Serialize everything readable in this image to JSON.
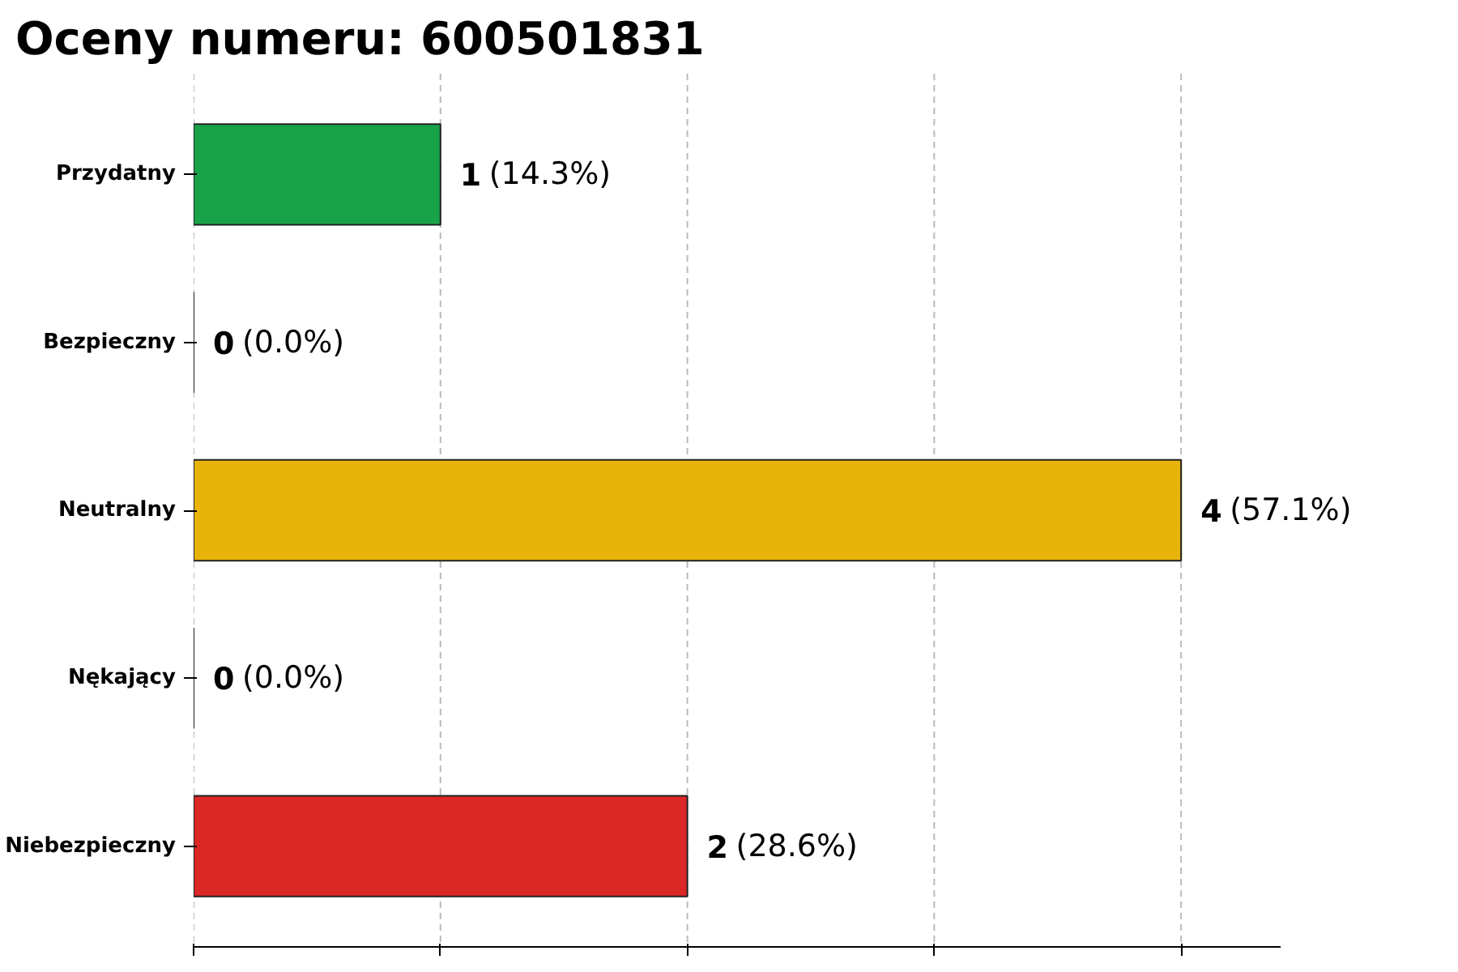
{
  "chart_data": {
    "type": "bar",
    "orientation": "horizontal",
    "title": "Oceny numeru: 600501831",
    "categories": [
      "Przydatny",
      "Bezpieczny",
      "Neutralny",
      "Nękający",
      "Niebezpieczny"
    ],
    "values": [
      1,
      0,
      4,
      0,
      2
    ],
    "colors": [
      "#18a349",
      "#222222",
      "#e8b40c",
      "#222222",
      "#dc2727"
    ],
    "value_labels": [
      "1 (14.3%)",
      "0 (0.0%)",
      "4 (57.1%)",
      "0 (0.0%)",
      "2 (28.6%)"
    ],
    "xlim": [
      0,
      4.4
    ],
    "xticks": [
      {
        "value": 0,
        "label": null
      },
      {
        "value": 1,
        "label": null
      },
      {
        "value": 2,
        "label": null
      },
      {
        "value": 3,
        "label": null
      },
      {
        "value": 4,
        "label": null
      }
    ],
    "tick_labels": "y",
    "grid": "x"
  }
}
